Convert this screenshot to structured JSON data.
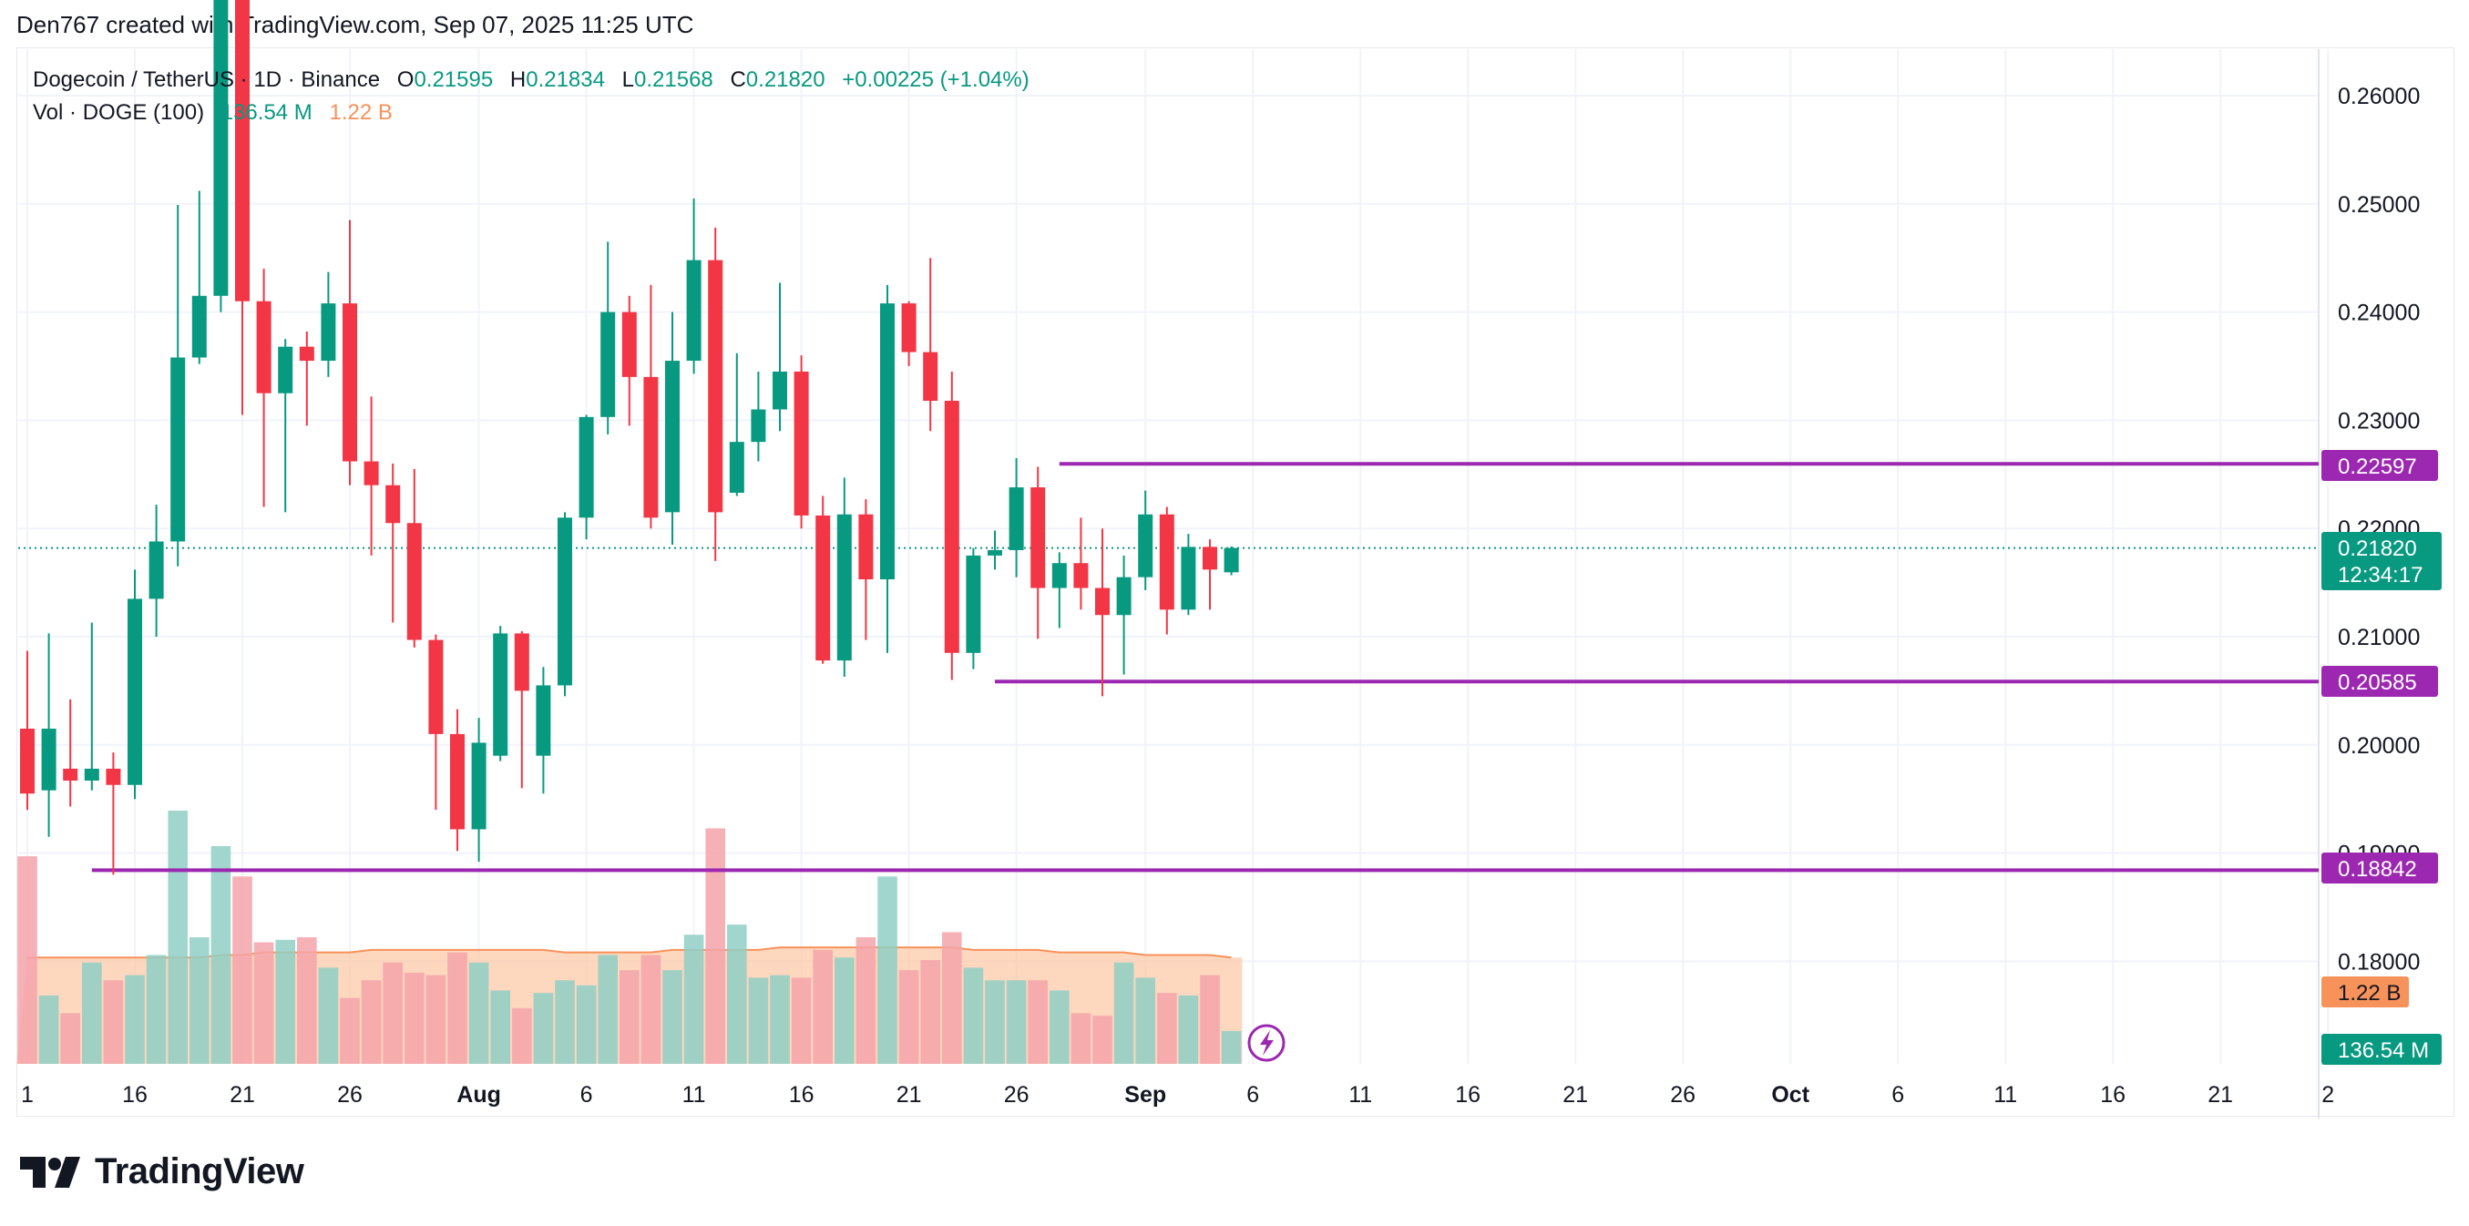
{
  "header": {
    "caption": "Den767 created with TradingView.com, Sep 07, 2025 11:25 UTC"
  },
  "legend": {
    "symbol": "Dogecoin / TetherUS · 1D · Binance",
    "open_label": "O",
    "open": "0.21595",
    "high_label": "H",
    "high": "0.21834",
    "low_label": "L",
    "low": "0.21568",
    "close_label": "C",
    "close": "0.21820",
    "change": "+0.00225 (+1.04%)",
    "vol_label": "Vol · DOGE (100)",
    "vol_value": "136.54 M",
    "vol_ma": "1.22 B"
  },
  "badges": {
    "resistance": "0.22597",
    "last_price": "0.21820",
    "countdown": "12:34:17",
    "support1": "0.20585",
    "support2": "0.18842",
    "vol_ma": "1.22 B",
    "vol_value": "136.54 M"
  },
  "colors": {
    "up": "#089981",
    "down": "#f23645",
    "up_vol": "#8fcfc5",
    "down_vol": "#f5a3aa",
    "ma_area": "#fcc9a8",
    "ma_line": "#f7925a",
    "level": "#9c27b0",
    "grid": "#f0f3fa"
  },
  "footer": {
    "brand": "TradingView"
  },
  "chart_data": {
    "type": "candlestick",
    "title": "Dogecoin / TetherUS · 1D · Binance",
    "ylim": [
      0.173,
      0.265
    ],
    "y_ticks": [
      "0.26000",
      "0.25000",
      "0.24000",
      "0.23000",
      "0.22000",
      "0.21000",
      "0.20000",
      "0.19000",
      "0.18000"
    ],
    "x_ticks": [
      {
        "label": "1",
        "day": 0
      },
      {
        "label": "16",
        "day": 5
      },
      {
        "label": "21",
        "day": 10
      },
      {
        "label": "26",
        "day": 15
      },
      {
        "label": "Aug",
        "day": 21
      },
      {
        "label": "6",
        "day": 26
      },
      {
        "label": "11",
        "day": 31
      },
      {
        "label": "16",
        "day": 36
      },
      {
        "label": "21",
        "day": 41
      },
      {
        "label": "26",
        "day": 46
      },
      {
        "label": "Sep",
        "day": 52
      },
      {
        "label": "6",
        "day": 57
      },
      {
        "label": "11",
        "day": 62
      },
      {
        "label": "16",
        "day": 67
      },
      {
        "label": "21",
        "day": 72
      },
      {
        "label": "26",
        "day": 77
      },
      {
        "label": "Oct",
        "day": 82
      },
      {
        "label": "6",
        "day": 87
      },
      {
        "label": "11",
        "day": 92
      },
      {
        "label": "16",
        "day": 97
      },
      {
        "label": "21",
        "day": 102
      },
      {
        "label": "2",
        "day": 107
      }
    ],
    "candles": [
      [
        0.2015,
        0.1955,
        0.2087,
        0.194
      ],
      [
        0.1958,
        0.2015,
        0.2103,
        0.1915
      ],
      [
        0.1978,
        0.1967,
        0.2042,
        0.1943
      ],
      [
        0.1967,
        0.1978,
        0.2113,
        0.1958
      ],
      [
        0.1978,
        0.1963,
        0.1993,
        0.188
      ],
      [
        0.1963,
        0.2135,
        0.2162,
        0.195
      ],
      [
        0.2135,
        0.2188,
        0.2222,
        0.21
      ],
      [
        0.2188,
        0.2358,
        0.2499,
        0.2165
      ],
      [
        0.2358,
        0.2415,
        0.2512,
        0.2352
      ],
      [
        0.2415,
        0.282,
        0.288,
        0.24
      ],
      [
        0.276,
        0.241,
        0.281,
        0.2305
      ],
      [
        0.241,
        0.2325,
        0.244,
        0.222
      ],
      [
        0.2325,
        0.2368,
        0.2375,
        0.2215
      ],
      [
        0.2368,
        0.2355,
        0.2382,
        0.2295
      ],
      [
        0.2355,
        0.2408,
        0.2437,
        0.234
      ],
      [
        0.2408,
        0.2262,
        0.2485,
        0.224
      ],
      [
        0.2262,
        0.224,
        0.2322,
        0.2175
      ],
      [
        0.224,
        0.2205,
        0.226,
        0.2113
      ],
      [
        0.2205,
        0.2097,
        0.2255,
        0.209
      ],
      [
        0.2097,
        0.201,
        0.2102,
        0.194
      ],
      [
        0.201,
        0.1922,
        0.2033,
        0.1902
      ],
      [
        0.1922,
        0.2002,
        0.2025,
        0.1892
      ],
      [
        0.199,
        0.2103,
        0.211,
        0.1985
      ],
      [
        0.2103,
        0.205,
        0.2105,
        0.196
      ],
      [
        0.199,
        0.2055,
        0.2072,
        0.1955
      ],
      [
        0.2055,
        0.221,
        0.2215,
        0.2045
      ],
      [
        0.221,
        0.2303,
        0.2305,
        0.219
      ],
      [
        0.2303,
        0.24,
        0.2465,
        0.2287
      ],
      [
        0.24,
        0.234,
        0.2415,
        0.2295
      ],
      [
        0.234,
        0.221,
        0.2425,
        0.22
      ],
      [
        0.2215,
        0.2355,
        0.24,
        0.2185
      ],
      [
        0.2355,
        0.2448,
        0.2505,
        0.2343
      ],
      [
        0.2448,
        0.2215,
        0.2478,
        0.217
      ],
      [
        0.2233,
        0.228,
        0.2362,
        0.223
      ],
      [
        0.228,
        0.231,
        0.2345,
        0.2262
      ],
      [
        0.231,
        0.2345,
        0.2427,
        0.229
      ],
      [
        0.2345,
        0.2212,
        0.236,
        0.22
      ],
      [
        0.2212,
        0.2078,
        0.223,
        0.2075
      ],
      [
        0.2078,
        0.2213,
        0.2247,
        0.2063
      ],
      [
        0.2213,
        0.2153,
        0.2227,
        0.2097
      ],
      [
        0.2153,
        0.2408,
        0.2425,
        0.2085
      ],
      [
        0.2408,
        0.2363,
        0.241,
        0.235
      ],
      [
        0.2363,
        0.2318,
        0.245,
        0.229
      ],
      [
        0.2318,
        0.2085,
        0.2345,
        0.206
      ],
      [
        0.2085,
        0.2175,
        0.2182,
        0.207
      ],
      [
        0.2175,
        0.218,
        0.2198,
        0.2162
      ],
      [
        0.218,
        0.2238,
        0.2265,
        0.2155
      ],
      [
        0.2238,
        0.2145,
        0.2257,
        0.2098
      ],
      [
        0.2145,
        0.2168,
        0.2178,
        0.2108
      ],
      [
        0.2168,
        0.2145,
        0.221,
        0.2125
      ],
      [
        0.2145,
        0.212,
        0.22,
        0.2045
      ],
      [
        0.212,
        0.2155,
        0.2175,
        0.2065
      ],
      [
        0.2155,
        0.2213,
        0.2235,
        0.2143
      ],
      [
        0.2213,
        0.2125,
        0.222,
        0.2102
      ],
      [
        0.2125,
        0.2183,
        0.2195,
        0.212
      ],
      [
        0.2183,
        0.2162,
        0.219,
        0.2125
      ],
      [
        0.21595,
        0.2182,
        0.21834,
        0.21568
      ]
    ],
    "volumes": [
      0.82,
      0.27,
      0.2,
      0.4,
      0.33,
      0.35,
      0.43,
      1.0,
      0.5,
      0.86,
      0.74,
      0.48,
      0.49,
      0.5,
      0.38,
      0.26,
      0.33,
      0.4,
      0.36,
      0.35,
      0.44,
      0.4,
      0.29,
      0.22,
      0.28,
      0.33,
      0.31,
      0.43,
      0.37,
      0.43,
      0.37,
      0.51,
      0.93,
      0.55,
      0.34,
      0.35,
      0.34,
      0.45,
      0.42,
      0.5,
      0.74,
      0.37,
      0.41,
      0.52,
      0.38,
      0.33,
      0.33,
      0.33,
      0.29,
      0.2,
      0.19,
      0.4,
      0.34,
      0.28,
      0.27,
      0.35,
      0.13
    ],
    "volume_ma": [
      0.42,
      0.42,
      0.42,
      0.42,
      0.42,
      0.42,
      0.42,
      0.42,
      0.42,
      0.43,
      0.43,
      0.44,
      0.44,
      0.44,
      0.44,
      0.44,
      0.45,
      0.45,
      0.45,
      0.45,
      0.45,
      0.45,
      0.45,
      0.45,
      0.45,
      0.44,
      0.44,
      0.44,
      0.44,
      0.44,
      0.45,
      0.45,
      0.45,
      0.45,
      0.45,
      0.46,
      0.46,
      0.46,
      0.46,
      0.46,
      0.46,
      0.46,
      0.46,
      0.46,
      0.45,
      0.45,
      0.45,
      0.45,
      0.44,
      0.44,
      0.44,
      0.44,
      0.43,
      0.43,
      0.43,
      0.43,
      0.42
    ],
    "levels": [
      {
        "value": 0.22597,
        "start_day": 48
      },
      {
        "value": 0.20585,
        "start_day": 45
      },
      {
        "value": 0.18842,
        "start_day": 3
      }
    ],
    "last_price": 0.2182,
    "grid": true
  }
}
